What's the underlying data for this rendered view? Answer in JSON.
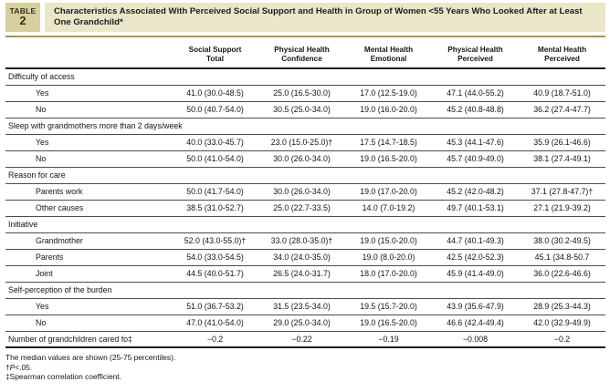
{
  "table_label": {
    "word": "TABLE",
    "number": "2"
  },
  "title": "Characteristics Associated With Perceived Social Support and Health in Group of Women <55 Years Who Looked After at Least One Grandchild*",
  "colors": {
    "title_band_bg": "#eae6c8",
    "badge_bg": "#d8cfa0",
    "gold_rule": "#a6994f",
    "text": "#141414"
  },
  "columns": [
    {
      "line1": "Social Support",
      "line2": "Total"
    },
    {
      "line1": "Physical Health",
      "line2": "Confidence"
    },
    {
      "line1": "Mental Health",
      "line2": "Emotional"
    },
    {
      "line1": "Physical Health",
      "line2": "Perceived"
    },
    {
      "line1": "Mental Health",
      "line2": "Perceived"
    }
  ],
  "sections": [
    {
      "header": "Difficulty of access",
      "rows": [
        {
          "label": "Yes",
          "values": [
            "41.0 (30.0-48.5)",
            "25.0 (16.5-30.0)",
            "17.0 (12.5-19.0)",
            "47.1 (44.0-55.2)",
            "40.9 (18.7-51.0)"
          ]
        },
        {
          "label": "No",
          "values": [
            "50.0 (40.7-54.0)",
            "30.5 (25.0-34.0)",
            "19.0 (16.0-20.0)",
            "45.2 (40.8-48.8)",
            "36.2 (27.4-47.7)"
          ]
        }
      ]
    },
    {
      "header": "Sleep with grandmothers more than 2 days/week",
      "rows": [
        {
          "label": "Yes",
          "values": [
            "40.0 (33.0-45.7)",
            "23.0 (15.0-25.0)†",
            "17.5 (14.7-18.5)",
            "45.3 (44.1-47.6)",
            "35.9 (26.1-46.6)"
          ]
        },
        {
          "label": "No",
          "values": [
            "50.0 (41.0-54.0)",
            "30.0 (26.0-34.0)",
            "19.0 (16.5-20.0)",
            "45.7 (40.9-49.0)",
            "38.1 (27.4-49.1)"
          ]
        }
      ]
    },
    {
      "header": "Reason for care",
      "rows": [
        {
          "label": "Parents work",
          "values": [
            "50.0 (41.7-54.0)",
            "30.0 (26.0-34.0)",
            "19.0 (17.0-20.0)",
            "45.2 (42.0-48.2)",
            "37.1 (27.8-47.7)†"
          ]
        },
        {
          "label": "Other causes",
          "values": [
            "38.5 (31.0-52.7)",
            "25.0 (22.7-33.5)",
            "14.0 (7.0-19.2)",
            "49.7 (40.1-53.1)",
            "27.1 (21.9-39.2)"
          ]
        }
      ]
    },
    {
      "header": "Initiative",
      "rows": [
        {
          "label": "Grandmother",
          "values": [
            "52.0 (43.0-55.0)†",
            "33.0 (28.0-35.0)†",
            "19.0 (15.0-20.0)",
            "44.7 (40.1-49.3)",
            "38.0 (30.2-49.5)"
          ]
        },
        {
          "label": "Parents",
          "values": [
            "54.0 (33.0-54.5)",
            "34.0 (24.0-35.0)",
            "19.0 (8.0-20.0)",
            "42.5 (42.0-52.3)",
            "45.1 (34.8-50.7"
          ]
        },
        {
          "label": "Joint",
          "values": [
            "44.5 (40.0-51.7)",
            "26.5 (24.0-31.7)",
            "18.0 (17.0-20.0)",
            "45.9 (41.4-49.0)",
            "36.0 (22.6-46.6)"
          ]
        }
      ]
    },
    {
      "header": "Self-perception of the burden",
      "rows": [
        {
          "label": "Yes",
          "values": [
            "51.0 (36.7-53.2)",
            "31.5 (23.5-34.0)",
            "19.5 (15.7-20.0)",
            "43.9 (35.6-47.9)",
            "28.9 (25.3-44.3)"
          ]
        },
        {
          "label": "No",
          "values": [
            "47.0 (41.0-54.0)",
            "29.0 (25.0-34.0)",
            "19.0 (16.5-20.0)",
            "46.6 (42.4-49.4)",
            "42.0 (32.9-49.9)"
          ]
        }
      ]
    }
  ],
  "summary_row": {
    "label": "Number of grandchildren cared fo‡",
    "values": [
      "−0.2",
      "−0.22",
      "−0.19",
      "−0.008",
      "−0.2"
    ]
  },
  "footnotes": {
    "line1": "The median values are shown (25-75 percentiles).",
    "line2_dagger": "†",
    "line2_p": "P",
    "line2_rest": "<.05.",
    "line3": "‡Spearman correlation coefficient."
  }
}
